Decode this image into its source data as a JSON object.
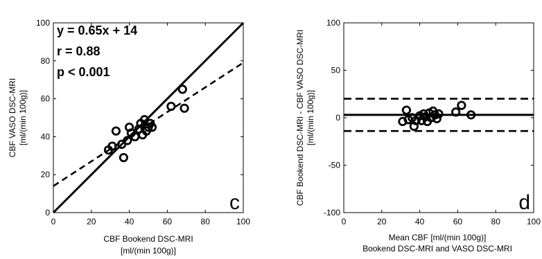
{
  "chart_data": [
    {
      "panel": "c",
      "type": "scatter",
      "ylabel_lines": [
        "CBF VASO DSC-MRI",
        "[ml/(min 100g)]"
      ],
      "xlabel_lines": [
        "CBF Bookend DSC-MRI",
        "[ml/(min 100g)]"
      ],
      "xlim": [
        0,
        100
      ],
      "ylim": [
        0,
        100
      ],
      "xticks": [
        0,
        20,
        40,
        60,
        80,
        100
      ],
      "yticks": [
        0,
        20,
        40,
        60,
        80,
        100
      ],
      "annotations": [
        "y = 0.65x + 14",
        "r = 0.88",
        "p < 0.001"
      ],
      "points": [
        {
          "x": 29,
          "y": 33
        },
        {
          "x": 31,
          "y": 35
        },
        {
          "x": 33,
          "y": 43
        },
        {
          "x": 36,
          "y": 36
        },
        {
          "x": 37,
          "y": 29
        },
        {
          "x": 39,
          "y": 38
        },
        {
          "x": 40,
          "y": 45
        },
        {
          "x": 41,
          "y": 42
        },
        {
          "x": 43,
          "y": 40
        },
        {
          "x": 45,
          "y": 44
        },
        {
          "x": 46,
          "y": 47
        },
        {
          "x": 47,
          "y": 41
        },
        {
          "x": 48,
          "y": 49
        },
        {
          "x": 49,
          "y": 43
        },
        {
          "x": 50,
          "y": 45
        },
        {
          "x": 51,
          "y": 47
        },
        {
          "x": 52,
          "y": 45
        },
        {
          "x": 62,
          "y": 56
        },
        {
          "x": 68,
          "y": 65
        },
        {
          "x": 69,
          "y": 55
        }
      ],
      "lines": [
        {
          "style": "solid",
          "from": [
            0,
            0
          ],
          "to": [
            100,
            100
          ]
        },
        {
          "style": "dashed",
          "from": [
            0,
            14
          ],
          "to": [
            100,
            79
          ]
        }
      ],
      "grid": false,
      "legend": "none"
    },
    {
      "panel": "d",
      "type": "scatter",
      "ylabel_lines": [
        "CBF Bookend DSC-MRI - CBF VASO DSC-MRI",
        "[ml/(min 100g)]"
      ],
      "xlabel_lines": [
        "Mean CBF [ml/(min 100g)]",
        "Bookend DSC-MRI and VASO DSC-MRI"
      ],
      "xlim": [
        0,
        100
      ],
      "ylim": [
        -100,
        100
      ],
      "xticks": [
        0,
        20,
        40,
        60,
        80,
        100
      ],
      "yticks": [
        100,
        50,
        0,
        -50,
        -100
      ],
      "points": [
        {
          "x": 31,
          "y": -4
        },
        {
          "x": 33,
          "y": 8
        },
        {
          "x": 34,
          "y": -2
        },
        {
          "x": 36,
          "y": 0
        },
        {
          "x": 37,
          "y": -9
        },
        {
          "x": 38,
          "y": -3
        },
        {
          "x": 40,
          "y": 2
        },
        {
          "x": 41,
          "y": -3
        },
        {
          "x": 42,
          "y": 4
        },
        {
          "x": 43,
          "y": 1
        },
        {
          "x": 44,
          "y": -4
        },
        {
          "x": 45,
          "y": 5
        },
        {
          "x": 46,
          "y": 0
        },
        {
          "x": 47,
          "y": 7
        },
        {
          "x": 48,
          "y": 3
        },
        {
          "x": 49,
          "y": -1
        },
        {
          "x": 50,
          "y": 4
        },
        {
          "x": 59,
          "y": 6
        },
        {
          "x": 62,
          "y": 13
        },
        {
          "x": 67,
          "y": 3
        }
      ],
      "lines": [
        {
          "style": "solid",
          "y": 3
        },
        {
          "style": "dashed",
          "y": 20
        },
        {
          "style": "dashed",
          "y": -14
        }
      ],
      "grid": false,
      "legend": "none"
    }
  ]
}
